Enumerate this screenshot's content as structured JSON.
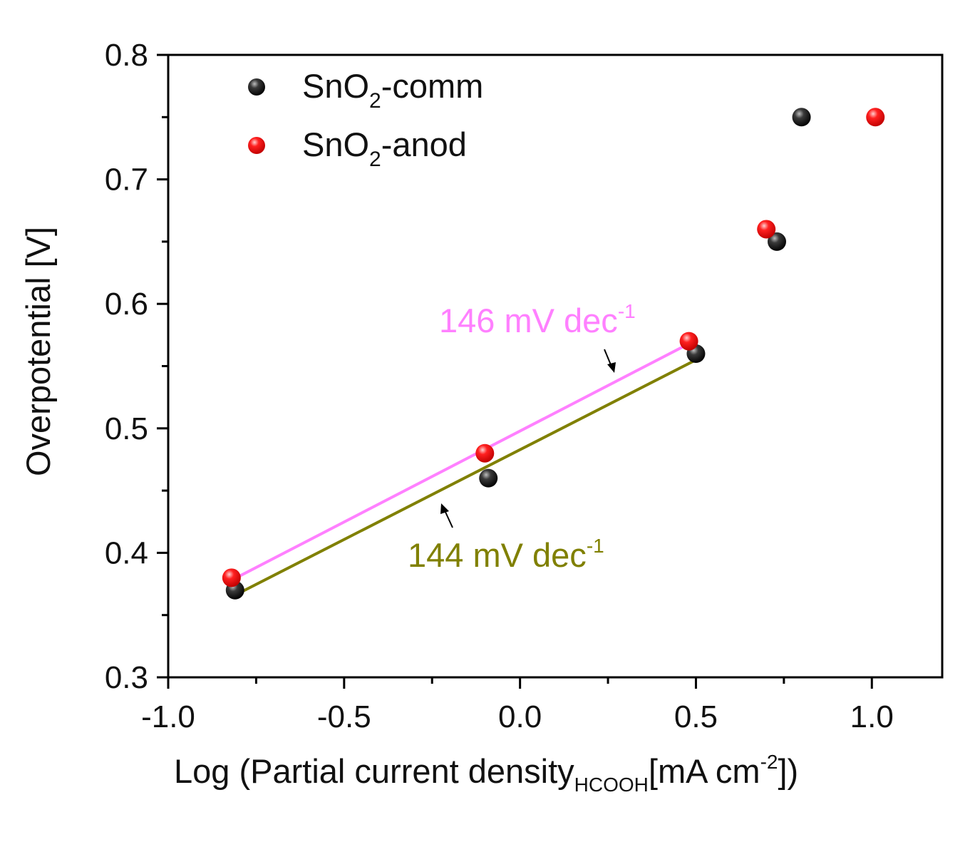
{
  "chart_data": {
    "type": "scatter",
    "title": "",
    "xlabel": {
      "main": "Log (Partial current density",
      "sub": "HCOOH",
      "bracket": "[mA cm",
      "sup": "-2",
      "end": "])"
    },
    "ylabel": "Overpotential [V]",
    "xlim": [
      -1.0,
      1.2
    ],
    "ylim": [
      0.3,
      0.8
    ],
    "x_ticks": [
      -1.0,
      -0.5,
      0.0,
      0.5,
      1.0
    ],
    "x_tick_labels": [
      "-1.0",
      "-0.5",
      "0.0",
      "0.5",
      "1.0"
    ],
    "y_ticks": [
      0.3,
      0.4,
      0.5,
      0.6,
      0.7,
      0.8
    ],
    "y_tick_labels": [
      "0.3",
      "0.4",
      "0.5",
      "0.6",
      "0.7",
      "0.8"
    ],
    "grid": false,
    "legend_position": "top-left",
    "series": [
      {
        "name_parts": {
          "base": "SnO",
          "sub": "2",
          "suffix": "-comm"
        },
        "color": "#000000",
        "points": [
          {
            "x": -0.81,
            "y": 0.37
          },
          {
            "x": -0.09,
            "y": 0.46
          },
          {
            "x": 0.5,
            "y": 0.56
          },
          {
            "x": 0.73,
            "y": 0.65
          },
          {
            "x": 0.8,
            "y": 0.75
          }
        ]
      },
      {
        "name_parts": {
          "base": "SnO",
          "sub": "2",
          "suffix": "-anod"
        },
        "color": "#ff0000",
        "points": [
          {
            "x": -0.82,
            "y": 0.38
          },
          {
            "x": -0.1,
            "y": 0.48
          },
          {
            "x": 0.48,
            "y": 0.57
          },
          {
            "x": 0.7,
            "y": 0.66
          },
          {
            "x": 1.01,
            "y": 0.75
          }
        ]
      }
    ],
    "fit_lines": [
      {
        "series": "SnO2-anod",
        "color": "#ff80ff",
        "from": {
          "x": -0.82,
          "y": 0.378
        },
        "to": {
          "x": 0.48,
          "y": 0.568
        },
        "label": {
          "value": "146 mV dec",
          "sup": "-1"
        }
      },
      {
        "series": "SnO2-comm",
        "color": "#808000",
        "from": {
          "x": -0.81,
          "y": 0.366
        },
        "to": {
          "x": 0.5,
          "y": 0.555
        },
        "label": {
          "value": "144 mV dec",
          "sup": "-1"
        }
      }
    ]
  }
}
